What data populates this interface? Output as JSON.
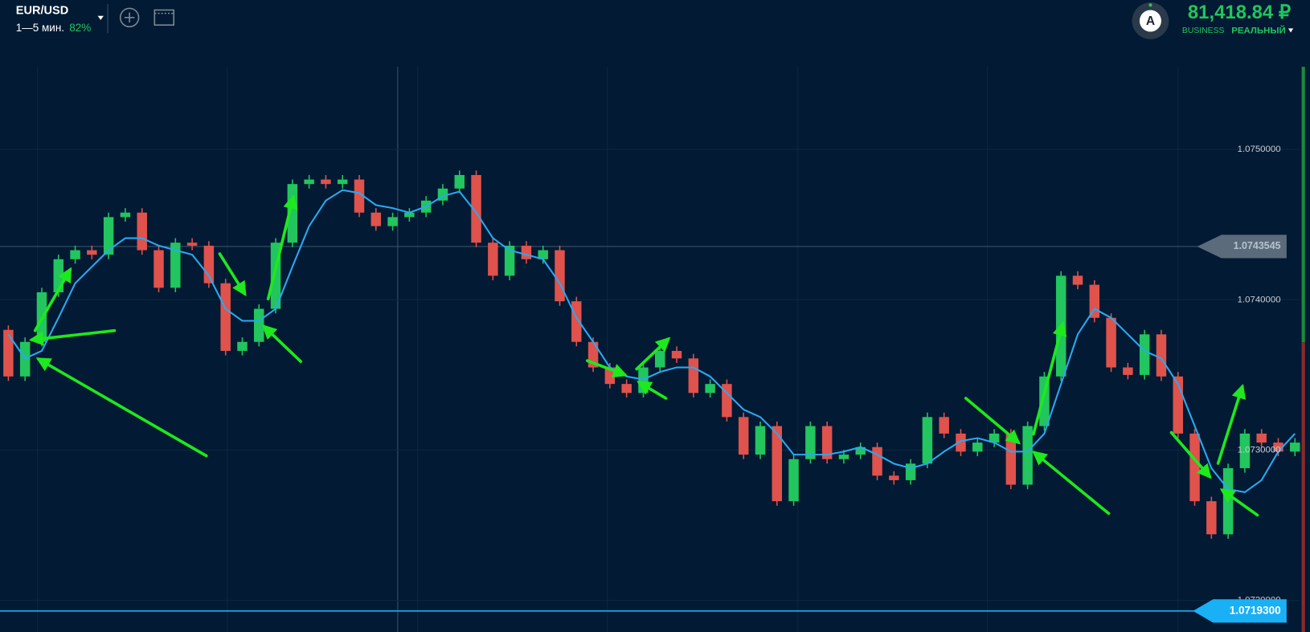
{
  "header": {
    "symbol": "EUR/USD",
    "timeframe": "1—5 мин.",
    "payout": "82%",
    "avatar": "A",
    "balance": "81,418.84 ₽",
    "account_type": "BUSINESS",
    "account_mode": "РЕАЛЬНЫЙ"
  },
  "chart_data": {
    "type": "candlestick",
    "ylim": [
      1.07179,
      1.07555
    ],
    "yticks": [
      {
        "value": 1.075,
        "label": "1.0750000"
      },
      {
        "value": 1.074,
        "label": "1.0740000"
      },
      {
        "value": 1.073,
        "label": "1.0730000"
      },
      {
        "value": 1.072,
        "label": "1.0720000"
      }
    ],
    "grid": true,
    "up_color": "#22c55e",
    "down_color": "#e0524c",
    "open": [
      1.0738,
      1.07349,
      1.07372,
      1.07405,
      1.07427,
      1.07433,
      1.0743,
      1.07455,
      1.07458,
      1.07433,
      1.07408,
      1.07438,
      1.07436,
      1.07411,
      1.07366,
      1.07372,
      1.07394,
      1.07438,
      1.07477,
      1.0748,
      1.07477,
      1.0748,
      1.07458,
      1.07449,
      1.07455,
      1.07458,
      1.07466,
      1.07474,
      1.07483,
      1.07438,
      1.07416,
      1.07436,
      1.07427,
      1.07433,
      1.07399,
      1.07372,
      1.07355,
      1.07344,
      1.07338,
      1.07355,
      1.07366,
      1.07361,
      1.07338,
      1.07344,
      1.07322,
      1.07297,
      1.07316,
      1.07266,
      1.07294,
      1.07316,
      1.07294,
      1.07297,
      1.07302,
      1.07283,
      1.0728,
      1.07291,
      1.07322,
      1.07311,
      1.07299,
      1.07305,
      1.07311,
      1.07277,
      1.07316,
      1.07349,
      1.07416,
      1.0741,
      1.07388,
      1.07355,
      1.0735,
      1.07377,
      1.07349,
      1.07311,
      1.07266,
      1.07244,
      1.07288,
      1.07311,
      1.07305,
      1.07299
    ],
    "high": [
      1.07383,
      1.07375,
      1.07408,
      1.0743,
      1.07436,
      1.07436,
      1.07458,
      1.07461,
      1.07461,
      1.07436,
      1.07441,
      1.07441,
      1.07439,
      1.07414,
      1.07375,
      1.07397,
      1.07441,
      1.0748,
      1.07483,
      1.07483,
      1.07483,
      1.07483,
      1.07461,
      1.07458,
      1.07461,
      1.07469,
      1.07477,
      1.07486,
      1.07486,
      1.07441,
      1.07439,
      1.07439,
      1.07436,
      1.07436,
      1.07402,
      1.07375,
      1.07358,
      1.07347,
      1.07358,
      1.07369,
      1.07369,
      1.07364,
      1.07347,
      1.07347,
      1.07325,
      1.07319,
      1.07319,
      1.07297,
      1.07319,
      1.07319,
      1.073,
      1.07305,
      1.07305,
      1.07286,
      1.07294,
      1.07325,
      1.07325,
      1.07314,
      1.07308,
      1.07314,
      1.07314,
      1.07319,
      1.07352,
      1.07419,
      1.07419,
      1.07413,
      1.07391,
      1.07358,
      1.0738,
      1.0738,
      1.07352,
      1.07314,
      1.07269,
      1.07291,
      1.07314,
      1.07314,
      1.07308,
      1.07308
    ],
    "low": [
      1.07346,
      1.07346,
      1.07369,
      1.07402,
      1.07424,
      1.07427,
      1.07427,
      1.07452,
      1.0743,
      1.07405,
      1.07405,
      1.07433,
      1.07408,
      1.07363,
      1.07363,
      1.07369,
      1.07391,
      1.07435,
      1.07474,
      1.07474,
      1.07474,
      1.07455,
      1.07446,
      1.07446,
      1.07452,
      1.07455,
      1.07463,
      1.07471,
      1.07435,
      1.07413,
      1.07413,
      1.07424,
      1.07424,
      1.07396,
      1.07369,
      1.07352,
      1.07341,
      1.07335,
      1.07335,
      1.07352,
      1.07358,
      1.07335,
      1.07335,
      1.07319,
      1.07294,
      1.07294,
      1.07263,
      1.07263,
      1.07291,
      1.07291,
      1.07291,
      1.07294,
      1.0728,
      1.07277,
      1.07277,
      1.07288,
      1.07308,
      1.07296,
      1.07296,
      1.07302,
      1.07274,
      1.07274,
      1.07313,
      1.07346,
      1.07407,
      1.07385,
      1.07352,
      1.07347,
      1.07347,
      1.07346,
      1.07308,
      1.07263,
      1.07241,
      1.07241,
      1.07285,
      1.07302,
      1.07296,
      1.07296
    ],
    "close": [
      1.07349,
      1.07372,
      1.07405,
      1.07427,
      1.07433,
      1.0743,
      1.07455,
      1.07458,
      1.07433,
      1.07408,
      1.07438,
      1.07436,
      1.07411,
      1.07366,
      1.07372,
      1.07394,
      1.07438,
      1.07477,
      1.0748,
      1.07477,
      1.0748,
      1.07458,
      1.07449,
      1.07455,
      1.07458,
      1.07466,
      1.07474,
      1.07483,
      1.07438,
      1.07416,
      1.07436,
      1.07427,
      1.07433,
      1.07399,
      1.07372,
      1.07355,
      1.07344,
      1.07338,
      1.07355,
      1.07366,
      1.07361,
      1.07338,
      1.07344,
      1.07322,
      1.07297,
      1.07316,
      1.07266,
      1.07294,
      1.07316,
      1.07294,
      1.07297,
      1.07302,
      1.07283,
      1.0728,
      1.07291,
      1.07322,
      1.07311,
      1.07299,
      1.07305,
      1.07311,
      1.07277,
      1.07316,
      1.07349,
      1.07416,
      1.0741,
      1.07388,
      1.07355,
      1.0735,
      1.07377,
      1.07349,
      1.07311,
      1.07266,
      1.07244,
      1.07288,
      1.07311,
      1.07305,
      1.07299,
      1.07305
    ],
    "ma": {
      "color": "#2aa8f2",
      "values": [
        1.07377,
        1.07361,
        1.07366,
        1.07388,
        1.07411,
        1.07422,
        1.07433,
        1.07441,
        1.07441,
        1.07436,
        1.07433,
        1.0743,
        1.07416,
        1.07394,
        1.07386,
        1.07386,
        1.07394,
        1.07422,
        1.07449,
        1.07466,
        1.07473,
        1.07471,
        1.07463,
        1.07461,
        1.07458,
        1.07462,
        1.07469,
        1.07472,
        1.07458,
        1.07441,
        1.07433,
        1.0743,
        1.07427,
        1.07411,
        1.07388,
        1.07372,
        1.07355,
        1.07349,
        1.07347,
        1.07352,
        1.07355,
        1.07355,
        1.07349,
        1.07338,
        1.07327,
        1.07322,
        1.07311,
        1.07297,
        1.07297,
        1.07297,
        1.07299,
        1.07302,
        1.07297,
        1.07291,
        1.07288,
        1.07291,
        1.07299,
        1.07306,
        1.07308,
        1.07305,
        1.07299,
        1.07299,
        1.07311,
        1.07344,
        1.07377,
        1.07394,
        1.07388,
        1.07377,
        1.07366,
        1.07361,
        1.07344,
        1.07316,
        1.07288,
        1.07274,
        1.07272,
        1.0728,
        1.07299,
        1.07311
      ]
    },
    "level_line": 1.0743545,
    "current_price": {
      "value": 1.07193,
      "label": "1.0719300"
    }
  }
}
